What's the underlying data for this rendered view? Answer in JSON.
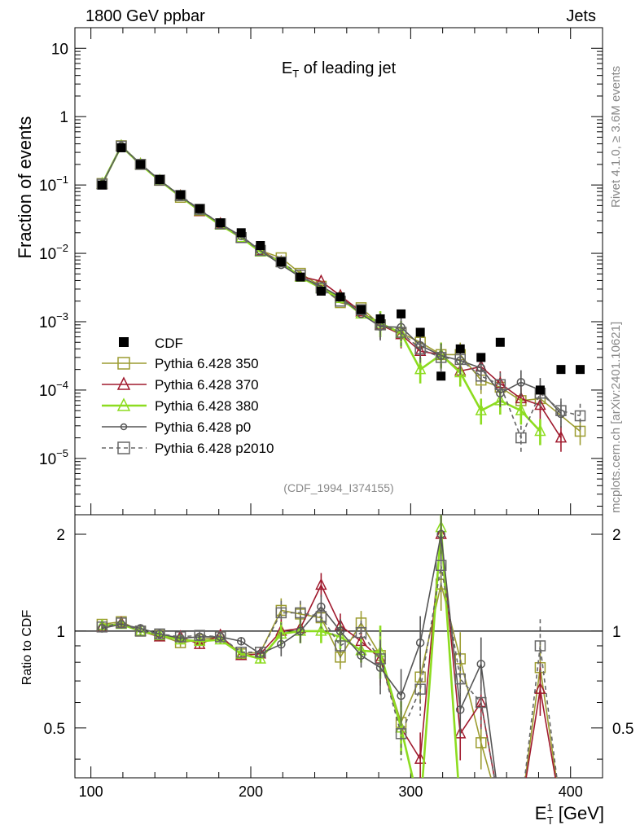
{
  "header": {
    "left": "1800 GeV ppbar",
    "right": "Jets",
    "side_top": "Rivet 4.1.0, ≥ 3.6M events",
    "side_bottom": "mcplots.cern.ch [arXiv:2401.10621]"
  },
  "chart_data": {
    "type": "line",
    "title": "E_T of leading jet",
    "title_main": "E",
    "title_sub": "T",
    "title_rest": " of leading jet",
    "ylabel": "Fraction of events",
    "ratio_ylabel": "Ratio to CDF",
    "xlabel_main": "E",
    "xlabel_sup": "1",
    "xlabel_sub": "T",
    "xlabel_rest": " [GeV]",
    "analysis_tag": "(CDF_1994_I374155)",
    "xlim": [
      90,
      420
    ],
    "ylim_log": [
      1.5e-06,
      20
    ],
    "ratio_ylim": [
      0.35,
      2.3
    ],
    "x_ticks": [
      "100",
      "200",
      "300",
      "400"
    ],
    "y_ticks": [
      {
        "base": "10",
        "exp": "",
        "v": 10
      },
      {
        "base": "1",
        "exp": "",
        "v": 1
      },
      {
        "base": "10",
        "exp": "−1",
        "v": 0.1
      },
      {
        "base": "10",
        "exp": "−2",
        "v": 0.01
      },
      {
        "base": "10",
        "exp": "−3",
        "v": 0.001
      },
      {
        "base": "10",
        "exp": "−4",
        "v": 0.0001
      },
      {
        "base": "10",
        "exp": "−5",
        "v": 1e-05
      }
    ],
    "ratio_ticks": [
      "0.5",
      "1",
      "2"
    ],
    "x": [
      107,
      119,
      131,
      143,
      156,
      168,
      181,
      194,
      206,
      219,
      231,
      244,
      256,
      269,
      281,
      294,
      306,
      319,
      331,
      344,
      356,
      369,
      381,
      394,
      406
    ],
    "cdf": [
      0.1,
      0.35,
      0.2,
      0.12,
      0.072,
      0.045,
      0.028,
      0.02,
      0.013,
      0.0075,
      0.0045,
      0.0028,
      0.0023,
      0.0015,
      0.0011,
      0.0013,
      0.0007,
      0.00016,
      0.0004,
      0.0003,
      0.0005,
      null,
      0.0001,
      0.0002,
      0.0002
    ],
    "series": [
      {
        "name": "Pythia 6.428 350",
        "color": "#9c9c30",
        "marker": "square",
        "dash": "",
        "values": [
          0.105,
          0.375,
          0.2,
          0.117,
          0.066,
          0.042,
          0.027,
          0.017,
          0.011,
          0.0086,
          0.0051,
          0.0033,
          0.0019,
          0.0016,
          0.0009,
          0.00068,
          0.0005,
          0.00033,
          0.00033,
          0.00014,
          0.00011,
          7e-05,
          7.5e-05,
          null,
          2.5e-05
        ],
        "ratio": [
          1.05,
          1.07,
          1.0,
          0.97,
          0.92,
          0.94,
          0.96,
          0.85,
          0.86,
          1.16,
          1.13,
          1.1,
          0.83,
          1.06,
          0.84,
          0.52,
          0.72,
          1.4,
          0.82,
          0.45,
          null,
          null,
          0.77,
          null,
          null
        ]
      },
      {
        "name": "Pythia 6.428 370",
        "color": "#a01a2e",
        "marker": "triangle",
        "dash": "",
        "values": [
          0.103,
          0.37,
          0.2,
          0.115,
          0.069,
          0.041,
          0.027,
          0.017,
          0.011,
          0.0075,
          0.0046,
          0.0039,
          0.0024,
          0.0014,
          0.0009,
          0.00065,
          0.00037,
          0.00033,
          0.00019,
          0.00022,
          0.000125,
          7.5e-05,
          6e-05,
          2e-05,
          null
        ],
        "ratio": [
          1.03,
          1.06,
          1.0,
          0.96,
          0.96,
          0.91,
          0.97,
          0.84,
          0.85,
          1.0,
          1.02,
          1.39,
          1.04,
          0.93,
          0.82,
          0.5,
          0.4,
          2.0,
          0.48,
          0.6,
          null,
          null,
          0.66,
          null,
          null
        ]
      },
      {
        "name": "Pythia 6.428 380",
        "color": "#8ddc20",
        "marker": "triangle",
        "dash": "",
        "values": [
          0.104,
          0.37,
          0.2,
          0.116,
          0.068,
          0.042,
          0.026,
          0.017,
          0.0105,
          0.0074,
          0.0045,
          0.0031,
          0.0022,
          0.0013,
          0.00095,
          0.00068,
          0.0002,
          0.00033,
          0.00018,
          5e-05,
          7e-05,
          5e-05,
          2.5e-05,
          null,
          null
        ],
        "ratio": [
          1.04,
          1.05,
          1.0,
          0.97,
          0.94,
          0.93,
          0.94,
          0.85,
          0.82,
          0.98,
          1.0,
          1.0,
          0.96,
          0.87,
          0.86,
          0.5,
          null,
          2.1,
          null,
          null,
          null,
          null,
          null,
          null,
          null
        ]
      },
      {
        "name": "Pythia 6.428 p0",
        "color": "#555555",
        "marker": "circle",
        "dash": "",
        "values": [
          0.102,
          0.37,
          0.205,
          0.118,
          0.069,
          0.043,
          0.027,
          0.018,
          0.011,
          0.0068,
          0.0045,
          0.0033,
          0.0023,
          0.0013,
          0.00085,
          0.00083,
          0.00045,
          0.00032,
          0.00027,
          0.00021,
          9e-05,
          0.00013,
          0.0001,
          4.5e-05,
          null
        ],
        "ratio": [
          1.02,
          1.05,
          1.02,
          0.98,
          0.95,
          0.96,
          0.96,
          0.93,
          0.85,
          0.91,
          1.0,
          1.19,
          1.0,
          0.84,
          0.77,
          0.63,
          0.92,
          2.0,
          0.57,
          0.79,
          null,
          null,
          null,
          null,
          null
        ]
      },
      {
        "name": "Pythia 6.428 p2010",
        "color": "#666666",
        "marker": "square",
        "dash": "5,4",
        "values": [
          0.103,
          0.37,
          0.2,
          0.118,
          0.07,
          0.044,
          0.027,
          0.017,
          0.011,
          0.0075,
          0.0048,
          0.0031,
          0.002,
          0.0015,
          0.0009,
          0.0007,
          0.0004,
          0.0003,
          0.00028,
          0.00016,
          0.00012,
          2e-05,
          9e-05,
          5e-05,
          4.2e-05
        ],
        "ratio": [
          1.03,
          1.06,
          1.0,
          0.98,
          0.96,
          0.97,
          0.96,
          0.86,
          0.86,
          1.14,
          1.14,
          1.11,
          0.9,
          0.99,
          0.82,
          0.48,
          0.66,
          1.6,
          0.71,
          0.6,
          null,
          null,
          0.9,
          null,
          null
        ]
      }
    ],
    "legend_cdf": "CDF"
  }
}
